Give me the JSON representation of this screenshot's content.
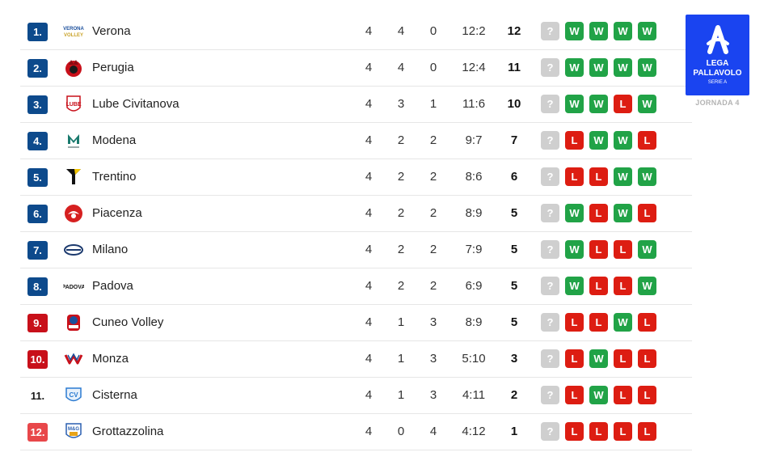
{
  "league": {
    "logo_lines": [
      "LEGA",
      "PALLAVOLO",
      "SERIE A"
    ],
    "round_label": "JORNADA 4",
    "colors": {
      "logo_bg": "#1a44f0"
    }
  },
  "rank_colors": {
    "blue": "#0d4a8c",
    "red": "#c8101a",
    "light_red": "#e8474a"
  },
  "rows": [
    {
      "rank": "1.",
      "rank_style": "blue",
      "logo_icon": "verona-volley-logo",
      "team": "Verona",
      "played": "4",
      "wins": "4",
      "losses": "0",
      "sets": "12:2",
      "points": "12",
      "form": [
        "?",
        "W",
        "W",
        "W",
        "W"
      ]
    },
    {
      "rank": "2.",
      "rank_style": "blue",
      "logo_icon": "perugia-logo",
      "team": "Perugia",
      "played": "4",
      "wins": "4",
      "losses": "0",
      "sets": "12:4",
      "points": "11",
      "form": [
        "?",
        "W",
        "W",
        "W",
        "W"
      ]
    },
    {
      "rank": "3.",
      "rank_style": "blue",
      "logo_icon": "lube-logo",
      "team": "Lube Civitanova",
      "played": "4",
      "wins": "3",
      "losses": "1",
      "sets": "11:6",
      "points": "10",
      "form": [
        "?",
        "W",
        "W",
        "L",
        "W"
      ]
    },
    {
      "rank": "4.",
      "rank_style": "blue",
      "logo_icon": "modena-logo",
      "team": "Modena",
      "played": "4",
      "wins": "2",
      "losses": "2",
      "sets": "9:7",
      "points": "7",
      "form": [
        "?",
        "L",
        "W",
        "W",
        "L"
      ]
    },
    {
      "rank": "5.",
      "rank_style": "blue",
      "logo_icon": "trentino-logo",
      "team": "Trentino",
      "played": "4",
      "wins": "2",
      "losses": "2",
      "sets": "8:6",
      "points": "6",
      "form": [
        "?",
        "L",
        "L",
        "W",
        "W"
      ]
    },
    {
      "rank": "6.",
      "rank_style": "blue",
      "logo_icon": "piacenza-logo",
      "team": "Piacenza",
      "played": "4",
      "wins": "2",
      "losses": "2",
      "sets": "8:9",
      "points": "5",
      "form": [
        "?",
        "W",
        "L",
        "W",
        "L"
      ]
    },
    {
      "rank": "7.",
      "rank_style": "blue",
      "logo_icon": "milano-logo",
      "team": "Milano",
      "played": "4",
      "wins": "2",
      "losses": "2",
      "sets": "7:9",
      "points": "5",
      "form": [
        "?",
        "W",
        "L",
        "L",
        "W"
      ]
    },
    {
      "rank": "8.",
      "rank_style": "blue",
      "logo_icon": "padova-logo",
      "team": "Padova",
      "played": "4",
      "wins": "2",
      "losses": "2",
      "sets": "6:9",
      "points": "5",
      "form": [
        "?",
        "W",
        "L",
        "L",
        "W"
      ]
    },
    {
      "rank": "9.",
      "rank_style": "red",
      "logo_icon": "cuneo-logo",
      "team": "Cuneo Volley",
      "played": "4",
      "wins": "1",
      "losses": "3",
      "sets": "8:9",
      "points": "5",
      "form": [
        "?",
        "L",
        "L",
        "W",
        "L"
      ]
    },
    {
      "rank": "10.",
      "rank_style": "red",
      "logo_icon": "monza-logo",
      "team": "Monza",
      "played": "4",
      "wins": "1",
      "losses": "3",
      "sets": "5:10",
      "points": "3",
      "form": [
        "?",
        "L",
        "W",
        "L",
        "L"
      ]
    },
    {
      "rank": "11.",
      "rank_style": "plain",
      "logo_icon": "cisterna-logo",
      "team": "Cisterna",
      "played": "4",
      "wins": "1",
      "losses": "3",
      "sets": "4:11",
      "points": "2",
      "form": [
        "?",
        "L",
        "W",
        "L",
        "L"
      ]
    },
    {
      "rank": "12.",
      "rank_style": "light_red",
      "logo_icon": "grottazzolina-logo",
      "team": "Grottazzolina",
      "played": "4",
      "wins": "0",
      "losses": "4",
      "sets": "4:12",
      "points": "1",
      "form": [
        "?",
        "L",
        "L",
        "L",
        "L"
      ]
    }
  ]
}
